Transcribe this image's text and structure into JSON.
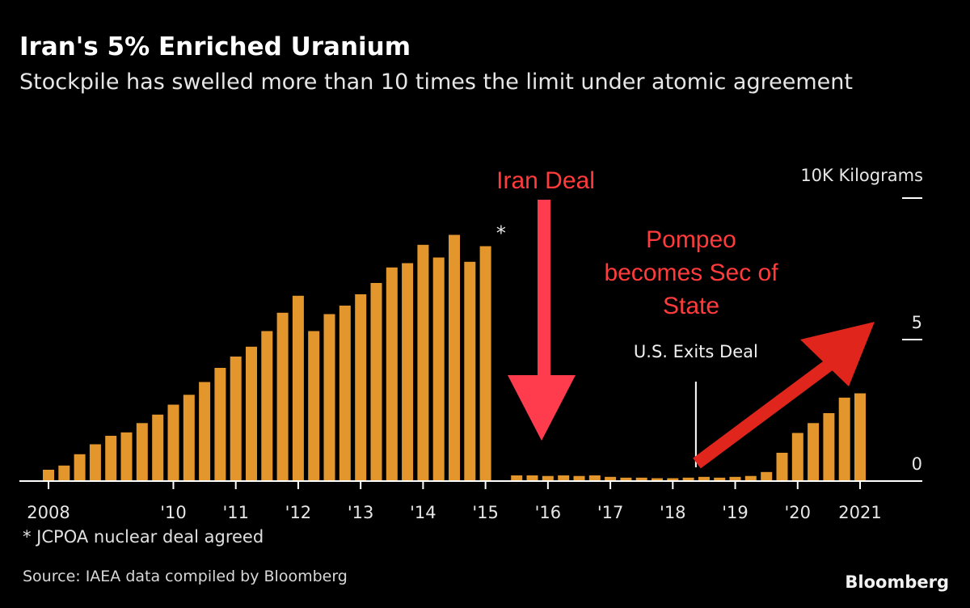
{
  "colors": {
    "background": "#000000",
    "bar": "#E3962C",
    "annotation": "#FF3B3B",
    "axis": "#FFFFFF",
    "text": "#E6E6E6"
  },
  "chart_data": {
    "type": "bar",
    "title": "Iran's 5% Enriched Uranium",
    "subtitle": "Stockpile has swelled more than 10 times the limit under atomic agreement",
    "unit_label": "10K Kilograms",
    "ylim": [
      0,
      10
    ],
    "y_ticks": [
      {
        "value": 10,
        "label": ""
      },
      {
        "value": 5,
        "label": "5"
      },
      {
        "value": 0,
        "label": "0"
      }
    ],
    "x_ticks": [
      {
        "x": 2008.0,
        "label": "2008"
      },
      {
        "x": 2010.0,
        "label": "'10"
      },
      {
        "x": 2011.0,
        "label": "'11"
      },
      {
        "x": 2012.0,
        "label": "'12"
      },
      {
        "x": 2013.0,
        "label": "'13"
      },
      {
        "x": 2014.0,
        "label": "'14"
      },
      {
        "x": 2015.0,
        "label": "'15"
      },
      {
        "x": 2016.0,
        "label": "'16"
      },
      {
        "x": 2017.0,
        "label": "'17"
      },
      {
        "x": 2018.0,
        "label": "'18"
      },
      {
        "x": 2019.0,
        "label": "'19"
      },
      {
        "x": 2020.0,
        "label": "'20"
      },
      {
        "x": 2021.0,
        "label": "2021"
      }
    ],
    "x_range": [
      2007.6,
      2021.6
    ],
    "bars": [
      {
        "x": 2008.0,
        "value": 0.4
      },
      {
        "x": 2008.25,
        "value": 0.55
      },
      {
        "x": 2008.5,
        "value": 0.95
      },
      {
        "x": 2008.75,
        "value": 1.3
      },
      {
        "x": 2009.0,
        "value": 1.6
      },
      {
        "x": 2009.25,
        "value": 1.72
      },
      {
        "x": 2009.5,
        "value": 2.05
      },
      {
        "x": 2009.75,
        "value": 2.35
      },
      {
        "x": 2010.0,
        "value": 2.7
      },
      {
        "x": 2010.25,
        "value": 3.05
      },
      {
        "x": 2010.5,
        "value": 3.5
      },
      {
        "x": 2010.75,
        "value": 4.0
      },
      {
        "x": 2011.0,
        "value": 4.4
      },
      {
        "x": 2011.25,
        "value": 4.75
      },
      {
        "x": 2011.5,
        "value": 5.3
      },
      {
        "x": 2011.75,
        "value": 5.95
      },
      {
        "x": 2012.0,
        "value": 6.55
      },
      {
        "x": 2012.25,
        "value": 5.3
      },
      {
        "x": 2012.5,
        "value": 5.9
      },
      {
        "x": 2012.75,
        "value": 6.2
      },
      {
        "x": 2013.0,
        "value": 6.6
      },
      {
        "x": 2013.25,
        "value": 7.0
      },
      {
        "x": 2013.5,
        "value": 7.55
      },
      {
        "x": 2013.75,
        "value": 7.7
      },
      {
        "x": 2014.0,
        "value": 8.35
      },
      {
        "x": 2014.25,
        "value": 7.9
      },
      {
        "x": 2014.5,
        "value": 8.7
      },
      {
        "x": 2014.75,
        "value": 7.75
      },
      {
        "x": 2015.0,
        "value": 8.3
      },
      {
        "x": 2015.5,
        "value": 0.2
      },
      {
        "x": 2015.75,
        "value": 0.2
      },
      {
        "x": 2016.0,
        "value": 0.18
      },
      {
        "x": 2016.25,
        "value": 0.2
      },
      {
        "x": 2016.5,
        "value": 0.18
      },
      {
        "x": 2016.75,
        "value": 0.2
      },
      {
        "x": 2017.0,
        "value": 0.15
      },
      {
        "x": 2017.25,
        "value": 0.12
      },
      {
        "x": 2017.5,
        "value": 0.12
      },
      {
        "x": 2017.75,
        "value": 0.1
      },
      {
        "x": 2018.0,
        "value": 0.1
      },
      {
        "x": 2018.25,
        "value": 0.12
      },
      {
        "x": 2018.5,
        "value": 0.15
      },
      {
        "x": 2018.75,
        "value": 0.12
      },
      {
        "x": 2019.0,
        "value": 0.15
      },
      {
        "x": 2019.25,
        "value": 0.18
      },
      {
        "x": 2019.5,
        "value": 0.32
      },
      {
        "x": 2019.75,
        "value": 1.0
      },
      {
        "x": 2020.0,
        "value": 1.7
      },
      {
        "x": 2020.25,
        "value": 2.05
      },
      {
        "x": 2020.5,
        "value": 2.4
      },
      {
        "x": 2020.75,
        "value": 2.95
      },
      {
        "x": 2021.0,
        "value": 3.1
      }
    ],
    "star_marker": {
      "x": 2015.25,
      "value": 8.3,
      "label": "*"
    },
    "event_line": {
      "x": 2018.37,
      "label": "U.S. Exits Deal"
    },
    "annotations": {
      "iran_deal": "Iran Deal",
      "pompeo": [
        "Pompeo",
        "becomes Sec of",
        "State"
      ]
    }
  },
  "footnote": "* JCPOA nuclear deal agreed",
  "source": "Source: IAEA data compiled by Bloomberg",
  "brand": "Bloomberg"
}
